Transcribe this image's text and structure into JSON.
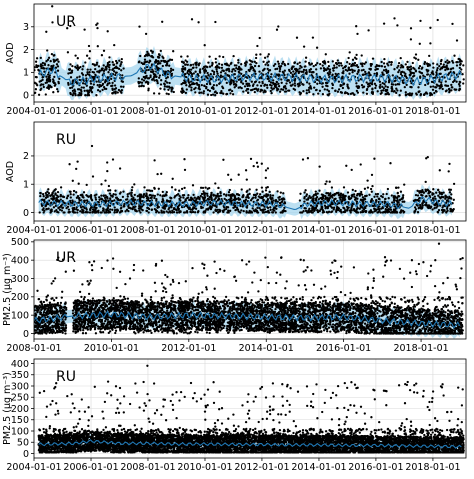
{
  "chart_data": [
    {
      "type": "scatter",
      "panel_label": "UR",
      "ylabel": "AOD",
      "x_range": [
        "2004-01-01",
        "2019-03-01"
      ],
      "ylim": [
        -0.3,
        4.0
      ],
      "yticks": [
        0,
        1,
        2,
        3
      ],
      "xticks": [
        "2004-01-01",
        "2006-01-01",
        "2008-01-01",
        "2010-01-01",
        "2012-01-01",
        "2014-01-01",
        "2016-01-01",
        "2018-01-01"
      ],
      "grid": true,
      "series": [
        {
          "kind": "observations",
          "color": "#000000",
          "segments": [
            [
              "2004-01-01",
              "2004-11-30"
            ],
            [
              "2005-03-01",
              "2007-02-28"
            ],
            [
              "2007-09-01",
              "2008-11-30"
            ],
            [
              "2009-03-01",
              "2019-01-31"
            ]
          ],
          "typical_range": [
            0.0,
            1.8
          ],
          "max_value": 3.9
        },
        {
          "kind": "forecast",
          "color": "#1f77b4",
          "points": [
            [
              "2004-03-01",
              0.9
            ],
            [
              "2004-09-01",
              1.1
            ],
            [
              "2005-04-01",
              0.55
            ],
            [
              "2006-06-01",
              0.75
            ],
            [
              "2007-06-01",
              0.85
            ],
            [
              "2008-02-01",
              1.3
            ],
            [
              "2008-09-01",
              0.9
            ],
            [
              "2009-06-01",
              0.75
            ],
            [
              "2010-06-01",
              0.7
            ],
            [
              "2011-06-01",
              0.8
            ],
            [
              "2012-06-01",
              0.8
            ],
            [
              "2013-06-01",
              0.75
            ],
            [
              "2014-06-01",
              0.7
            ],
            [
              "2015-06-01",
              0.75
            ],
            [
              "2016-06-01",
              0.75
            ],
            [
              "2017-06-01",
              0.6
            ],
            [
              "2018-06-01",
              0.8
            ],
            [
              "2019-01-01",
              0.9
            ]
          ]
        },
        {
          "kind": "uncertainty_band",
          "color": "#a6d5ee",
          "half_width": 0.7
        }
      ]
    },
    {
      "type": "scatter",
      "panel_label": "RU",
      "ylabel": "AOD",
      "x_range": [
        "2004-01-01",
        "2019-03-01"
      ],
      "ylim": [
        -0.3,
        3.2
      ],
      "yticks": [
        0,
        1,
        2
      ],
      "xticks": [
        "2004-01-01",
        "2006-01-01",
        "2008-01-01",
        "2010-01-01",
        "2012-01-01",
        "2014-01-01",
        "2016-01-01",
        "2018-01-01"
      ],
      "grid": true,
      "series": [
        {
          "kind": "observations",
          "color": "#000000",
          "segments": [
            [
              "2004-03-01",
              "2012-10-31"
            ],
            [
              "2013-05-01",
              "2016-12-31"
            ],
            [
              "2017-05-01",
              "2018-09-30"
            ]
          ],
          "typical_range": [
            0.0,
            0.9
          ],
          "max_value": 2.35
        },
        {
          "kind": "forecast",
          "color": "#1f77b4",
          "points": [
            [
              "2004-03-01",
              0.35
            ],
            [
              "2005-06-01",
              0.3
            ],
            [
              "2006-06-01",
              0.3
            ],
            [
              "2007-06-01",
              0.35
            ],
            [
              "2008-06-01",
              0.3
            ],
            [
              "2009-06-01",
              0.3
            ],
            [
              "2010-06-01",
              0.35
            ],
            [
              "2011-06-01",
              0.3
            ],
            [
              "2012-06-01",
              0.3
            ],
            [
              "2013-03-01",
              0.1
            ],
            [
              "2013-08-01",
              0.3
            ],
            [
              "2014-06-01",
              0.35
            ],
            [
              "2015-06-01",
              0.3
            ],
            [
              "2016-06-01",
              0.3
            ],
            [
              "2017-03-01",
              0.15
            ],
            [
              "2017-09-01",
              0.5
            ],
            [
              "2018-03-01",
              0.35
            ],
            [
              "2018-09-01",
              0.3
            ]
          ]
        },
        {
          "kind": "uncertainty_band",
          "color": "#a6d5ee",
          "half_width": 0.4
        }
      ]
    },
    {
      "type": "scatter",
      "panel_label": "UR",
      "ylabel": "PM2.5 (μg m⁻³)",
      "x_range": [
        "2008-01-01",
        "2019-03-01"
      ],
      "ylim": [
        -30,
        510
      ],
      "yticks": [
        0,
        100,
        200,
        300,
        400,
        500
      ],
      "xticks": [
        "2008-01-01",
        "2010-01-01",
        "2012-01-01",
        "2014-01-01",
        "2016-01-01",
        "2018-01-01"
      ],
      "grid": true,
      "series": [
        {
          "kind": "observations",
          "color": "#000000",
          "segments": [
            [
              "2008-01-01",
              "2008-10-31"
            ],
            [
              "2009-01-01",
              "2019-01-31"
            ]
          ],
          "typical_range": [
            0,
            200
          ],
          "max_value": 490
        },
        {
          "kind": "forecast",
          "color": "#1f77b4",
          "points": [
            [
              "2008-01-01",
              70
            ],
            [
              "2008-06-01",
              80
            ],
            [
              "2009-01-01",
              95
            ],
            [
              "2010-01-01",
              105
            ],
            [
              "2011-01-01",
              90
            ],
            [
              "2012-01-01",
              100
            ],
            [
              "2013-01-01",
              95
            ],
            [
              "2014-01-01",
              90
            ],
            [
              "2015-01-01",
              85
            ],
            [
              "2016-01-01",
              90
            ],
            [
              "2017-01-01",
              70
            ],
            [
              "2018-01-01",
              55
            ],
            [
              "2019-01-01",
              45
            ]
          ]
        },
        {
          "kind": "uncertainty_band",
          "color": "#a6d5ee",
          "half_width": 65
        }
      ]
    },
    {
      "type": "scatter",
      "panel_label": "RU",
      "ylabel": "PM2.5 (μg m⁻³)",
      "x_range": [
        "2004-01-01",
        "2019-03-01"
      ],
      "ylim": [
        -20,
        420
      ],
      "yticks": [
        0,
        50,
        100,
        150,
        200,
        250,
        300,
        350,
        400
      ],
      "xticks": [
        "2004-01-01",
        "2006-01-01",
        "2008-01-01",
        "2010-01-01",
        "2012-01-01",
        "2014-01-01",
        "2016-01-01",
        "2018-01-01"
      ],
      "grid": true,
      "series": [
        {
          "kind": "observations",
          "color": "#000000",
          "segments": [
            [
              "2004-03-01",
              "2019-01-31"
            ]
          ],
          "typical_range": [
            5,
            110
          ],
          "max_value": 390
        },
        {
          "kind": "forecast",
          "color": "#1f77b4",
          "points": [
            [
              "2004-03-01",
              40
            ],
            [
              "2005-06-01",
              45
            ],
            [
              "2006-01-01",
              55
            ],
            [
              "2007-01-01",
              45
            ],
            [
              "2008-01-01",
              45
            ],
            [
              "2009-01-01",
              42
            ],
            [
              "2010-01-01",
              42
            ],
            [
              "2011-01-01",
              40
            ],
            [
              "2012-01-01",
              40
            ],
            [
              "2013-01-01",
              38
            ],
            [
              "2014-01-01",
              38
            ],
            [
              "2015-01-01",
              36
            ],
            [
              "2016-01-01",
              36
            ],
            [
              "2017-01-01",
              34
            ],
            [
              "2018-01-01",
              32
            ],
            [
              "2019-01-01",
              30
            ]
          ]
        },
        {
          "kind": "uncertainty_band",
          "color": "#a6d5ee",
          "half_width": 25
        }
      ]
    }
  ]
}
